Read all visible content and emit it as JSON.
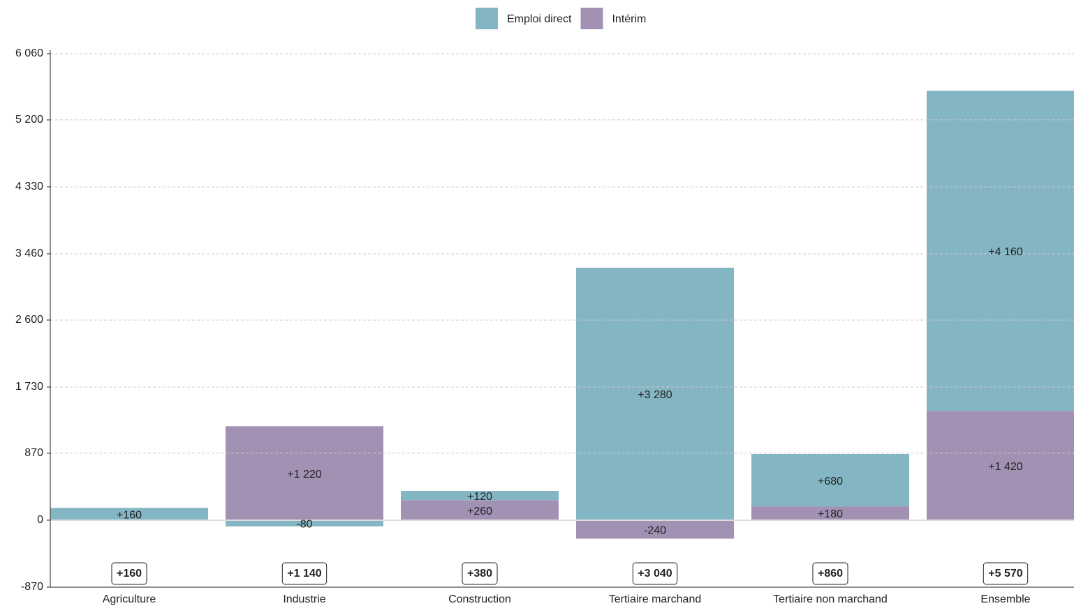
{
  "chart_data": {
    "type": "stacked-bar",
    "categories": [
      "Agriculture",
      "Industrie",
      "Construction",
      "Tertiaire marchand",
      "Tertiaire non marchand",
      "Ensemble"
    ],
    "series": [
      {
        "name": "Emploi direct",
        "color": "#84b5c3",
        "values": [
          160,
          -80,
          120,
          3280,
          680,
          4160
        ],
        "value_labels": [
          "+160",
          "-80",
          "+120",
          "+3 280",
          "+680",
          "+4 160"
        ]
      },
      {
        "name": "Intérim",
        "color": "#a391b3",
        "values": [
          null,
          1220,
          260,
          -240,
          180,
          1420
        ],
        "value_labels": [
          null,
          "+1 220",
          "+260",
          "-240",
          "+180",
          "+1 420"
        ]
      }
    ],
    "totals": {
      "values": [
        160,
        1140,
        380,
        3040,
        860,
        5570
      ],
      "value_labels": [
        "+160",
        "+1 140",
        "+380",
        "+3 040",
        "+860",
        "+5 570"
      ]
    },
    "ylim": [
      -870,
      6060
    ],
    "yticks": [
      -870,
      0,
      870,
      {
        "value": 1730,
        "label": "1 730"
      },
      {
        "value": 2600,
        "label": "2 600"
      },
      {
        "value": 3460,
        "label": "3 460"
      },
      {
        "value": 4330,
        "label": "4 330"
      },
      {
        "value": 5200,
        "label": "5 200"
      },
      {
        "value": 6060,
        "label": "6 060"
      }
    ],
    "grid": true,
    "legend": "top"
  }
}
